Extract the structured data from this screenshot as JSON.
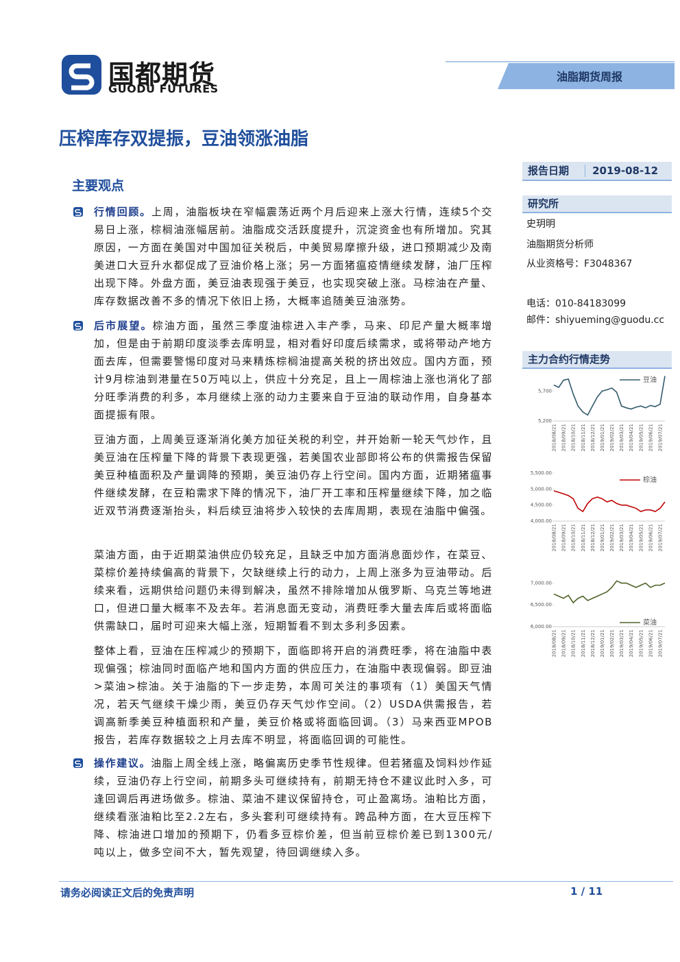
{
  "header": {
    "logo_cn": "国都期货",
    "logo_en": "GUODU FUTURES",
    "report_type": "油脂期货周报"
  },
  "title": "压榨库存双提振，豆油领涨油脂",
  "section_title": "主要观点",
  "paragraphs": [
    {
      "lead": "行情回顾。",
      "text": "上周，油脂板块在窄幅震荡近两个月后迎来上涨大行情，连续5个交易日上涨，棕榈油涨幅居前。油脂成交活跃度提升，沉淀资金也有所增加。究其原因，一方面在美国对中国加征关税后，中美贸易摩擦升级，进口预期减少及南美进口大豆升水都促成了豆油价格上涨；另一方面猪瘟疫情继续发酵，油厂压榨出现下降。外盘方面，美豆油表现强于美豆，也实现突破上涨。马棕油在产量、库存数据改善不多的情况下依旧上扬，大概率追随美豆油涨势。"
    },
    {
      "lead": "后市展望。",
      "text": "棕油方面，虽然三季度油棕进入丰产季，马来、印尼产量大概率增加，但是由于前期印度淡季去库明显，相对看好印度后续需求，或将带动产地方面去库，但需要警惕印度对马来精炼棕榈油提高关税的挤出效应。国内方面，预计9月棕油到港量在50万吨以上，供应十分充足，且上一周棕油上涨也消化了部分旺季消费的利多，本月继续上涨的动力主要来自于豆油的联动作用，自身基本面提振有限。"
    },
    {
      "text": "豆油方面，上周美豆逐渐消化美方加征关税的利空，并开始新一轮天气炒作，且美豆油在压榨量下降的背景下表现更强，若美国农业部即将公布的供需报告保留美豆种植面积及产量调降的预期，美豆油仍存上行空间。国内方面，近期猪瘟事件继续发酵，在豆粕需求下降的情况下，油厂开工率和压榨量继续下降，加之临近双节消费逐渐抬头，料后续豆油将步入较快的去库周期，表现在油脂中偏强。"
    },
    {
      "text": "菜油方面，由于近期菜油供应仍较充足，且缺乏中加方面消息面炒作，在菜豆、菜棕价差持续偏高的背景下，欠缺继续上行的动力，上周上涨多为豆油带动。后续来看，远期供给问题仍未得到解决，虽然不排除增加从俄罗斯、乌克兰等地进口，但进口量大概率不及去年。若消息面无变动，消费旺季大量去库后或将面临供需缺口，届时可迎来大幅上涨，短期暂看不到太多利多因素。"
    },
    {
      "text": "整体上看，豆油在压榨减少的预期下，面临即将开启的消费旺季，将在油脂中表现偏强；棕油同时面临产地和国内方面的供应压力，在油脂中表现偏弱。即豆油>菜油>棕油。关于油脂的下一步走势，本周可关注的事项有（1）美国天气情况，若天气继续干燥少雨，美豆仍存天气炒作空间。（2）USDA供需报告，若调高新季美豆种植面积和产量，美豆价格或将面临回调。（3）马来西亚MPOB报告，若库存数据较之上月去库不明显，将面临回调的可能性。"
    },
    {
      "lead": "操作建议。",
      "text": "油脂上周全线上涨，略偏离历史季节性规律。但若猪瘟及饲料炒作延续，豆油仍存上行空间，前期多头可继续持有，前期无持仓不建议此时入多，可逢回调后再进场做多。棕油、菜油不建议保留持仓，可止盈离场。油粕比方面，继续看涨油粕比至2.2左右，多头套利可继续持有。跨品种方面，在大豆压榨下降、棕油进口增加的预期下，仍看多豆棕价差，但当前豆棕价差已到1300元/吨以上，做多空间不大，暂先观望，待回调继续入多。"
    }
  ],
  "sidebar": {
    "report_date_label": "报告日期",
    "report_date": "2019-08-12",
    "dept": "研究所",
    "analyst": "史玥明",
    "role": "油脂期货分析师",
    "license": "从业资格号：F3048367",
    "phone": "电话：010-84183099",
    "email": "邮件：shiyueming@guodu.cc",
    "charts_title": "主力合约行情走势"
  },
  "chart_data": [
    {
      "type": "line",
      "categories": [
        "2018/08/21",
        null,
        "2018/09/21",
        null,
        "2018/10/21",
        null,
        "2018/11/21",
        null,
        "2018/12/21",
        null,
        "2019/01/21",
        null,
        "2019/02/21",
        null,
        "2019/03/21",
        null,
        "2019/04/21",
        null,
        "2019/05/21",
        null,
        "2019/06/21",
        null,
        "2019/07/21",
        null
      ],
      "series": [
        {
          "name": "豆油",
          "color": "#31596b",
          "values": [
            5800,
            5760,
            5880,
            5900,
            5650,
            5450,
            5350,
            5300,
            5450,
            5600,
            5700,
            5720,
            5750,
            5680,
            5450,
            5420,
            5400,
            5430,
            5450,
            5420,
            5460,
            5440,
            5480,
            5950
          ]
        }
      ],
      "ylim": [
        5200,
        6000
      ],
      "yticks": [
        {
          "value": 5200,
          "label": "5,200"
        },
        {
          "value": 5700,
          "label": "5,700"
        }
      ],
      "grid": false,
      "legend": "upper right"
    },
    {
      "type": "line",
      "categories": [
        "2018/08/21",
        null,
        "2018/09/21",
        null,
        "2018/10/21",
        null,
        "2018/11/21",
        null,
        "2018/12/21",
        null,
        "2019/01/21",
        null,
        "2019/02/21",
        null,
        "2019/03/21",
        null,
        "2019/04/21",
        null,
        "2019/05/21",
        null,
        "2019/06/21",
        null,
        "2019/07/21",
        null
      ],
      "series": [
        {
          "name": "棕油",
          "color": "#c00000",
          "values": [
            4950,
            4900,
            4850,
            4800,
            4700,
            4400,
            4300,
            4550,
            4700,
            4750,
            4700,
            4600,
            4650,
            4550,
            4500,
            4500,
            4450,
            4400,
            4300,
            4350,
            4350,
            4300,
            4400,
            4600
          ]
        }
      ],
      "ylim": [
        4000,
        5500
      ],
      "yticks": [
        {
          "value": 4000,
          "label": "4,000.00"
        },
        {
          "value": 4500,
          "label": "4,500.00"
        },
        {
          "value": 5000,
          "label": "5,000.00"
        },
        {
          "value": 5500,
          "label": "5,500.00"
        }
      ],
      "grid": false,
      "legend": "upper right"
    },
    {
      "type": "line",
      "categories": [
        "2018/08/21",
        null,
        "2018/09/21",
        null,
        "2018/10/21",
        null,
        "2018/11/21",
        null,
        "2018/12/21",
        null,
        "2019/01/21",
        null,
        "2019/02/21",
        null,
        "2019/03/21",
        null,
        "2019/04/21",
        null,
        "2019/05/21",
        null,
        "2019/06/21",
        null,
        "2019/07/21",
        null
      ],
      "series": [
        {
          "name": "菜油",
          "color": "#4f6228",
          "values": [
            6750,
            6700,
            6650,
            6720,
            6550,
            6650,
            6700,
            6600,
            6650,
            6700,
            6750,
            6800,
            6900,
            7050,
            7000,
            7000,
            6950,
            6900,
            6950,
            7000,
            6900,
            6950,
            6950,
            7000
          ]
        }
      ],
      "ylim": [
        6000,
        7100
      ],
      "yticks": [
        {
          "value": 6000,
          "label": "6,000.00"
        },
        {
          "value": 6500,
          "label": "6,500.00"
        },
        {
          "value": 7000,
          "label": "7,000.00"
        }
      ],
      "grid": false,
      "legend": "lower right"
    }
  ],
  "footer": {
    "disclaimer": "请务必阅读正文后的免责声明",
    "page": "1 / 11"
  }
}
